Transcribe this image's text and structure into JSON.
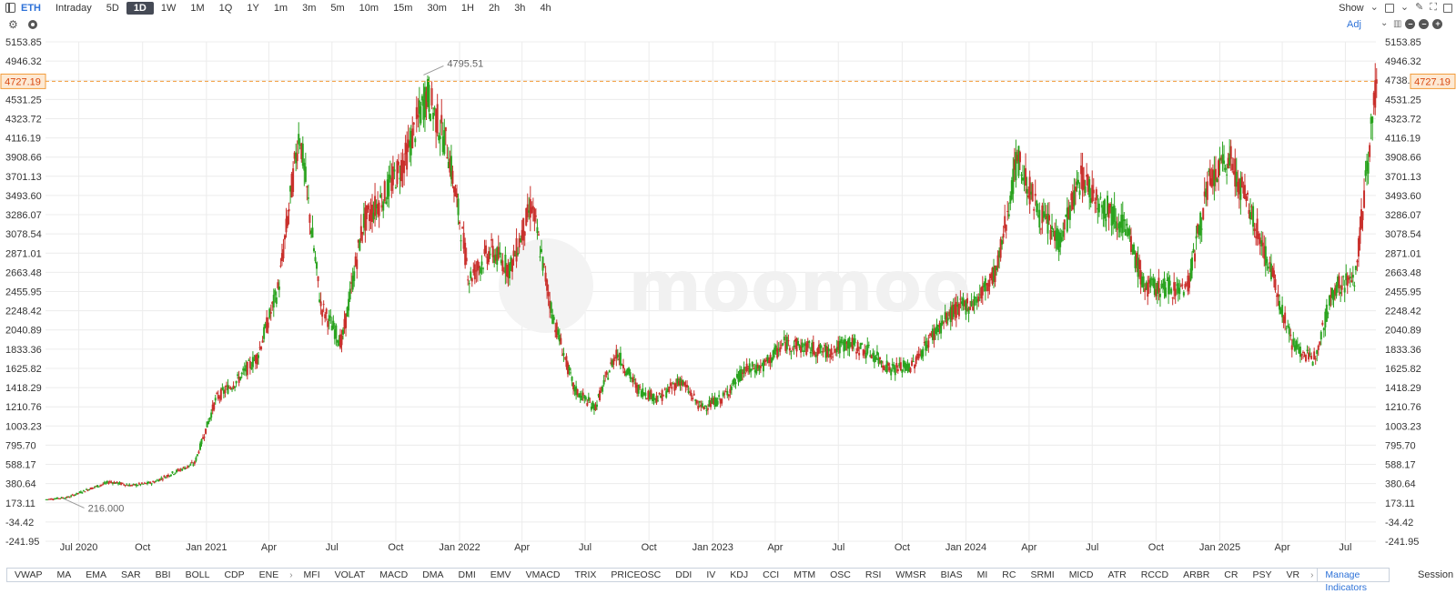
{
  "toolbar": {
    "ticker": "ETH",
    "periods": [
      "Intraday",
      "5D",
      "1D",
      "1W",
      "1M",
      "1Q",
      "1Y",
      "1m",
      "3m",
      "5m",
      "10m",
      "15m",
      "30m",
      "1H",
      "2h",
      "3h",
      "4h"
    ],
    "active_period": "1D",
    "show_label": "Show",
    "adj_label": "Adj"
  },
  "chart_data": {
    "type": "candlestick",
    "watermark": "moomoo",
    "y_ticks": [
      "5153.85",
      "4946.32",
      "4738.78",
      "4531.25",
      "4323.72",
      "4116.19",
      "3908.66",
      "3701.13",
      "3493.60",
      "3286.07",
      "3078.54",
      "2871.01",
      "2663.48",
      "2455.95",
      "2248.42",
      "2040.89",
      "1833.36",
      "1625.82",
      "1418.29",
      "1210.76",
      "1003.23",
      "795.70",
      "588.17",
      "380.64",
      "173.11",
      "-34.42",
      "-241.95"
    ],
    "x_ticks": [
      "Jul 2020",
      "Oct",
      "Jan 2021",
      "Apr",
      "Jul",
      "Oct",
      "Jan 2022",
      "Apr",
      "Jul",
      "Oct",
      "Jan 2023",
      "Apr",
      "Jul",
      "Oct",
      "Jan 2024",
      "Apr",
      "Jul",
      "Oct",
      "Jan 2025",
      "Apr",
      "Jul"
    ],
    "y_range": [
      -241.95,
      5153.85
    ],
    "current_price": "4727.19",
    "max_label": "4795.51",
    "min_label": "216.000",
    "up_color": "#2aa31f",
    "down_color": "#c9302c",
    "price_line_color": "#f29b38",
    "series": [
      {
        "date": "2020-05",
        "value": 210
      },
      {
        "date": "2020-06",
        "value": 232
      },
      {
        "date": "2020-07",
        "value": 320
      },
      {
        "date": "2020-08",
        "value": 400
      },
      {
        "date": "2020-09",
        "value": 360
      },
      {
        "date": "2020-10",
        "value": 390
      },
      {
        "date": "2020-11",
        "value": 500
      },
      {
        "date": "2020-12",
        "value": 600
      },
      {
        "date": "2021-01",
        "value": 1300
      },
      {
        "date": "2021-02",
        "value": 1500
      },
      {
        "date": "2021-03",
        "value": 1750
      },
      {
        "date": "2021-04",
        "value": 2500
      },
      {
        "date": "2021-05",
        "value": 4200
      },
      {
        "date": "2021-06",
        "value": 2300
      },
      {
        "date": "2021-07",
        "value": 1900
      },
      {
        "date": "2021-08",
        "value": 3200
      },
      {
        "date": "2021-09",
        "value": 3500
      },
      {
        "date": "2021-10",
        "value": 3900
      },
      {
        "date": "2021-11",
        "value": 4600
      },
      {
        "date": "2021-12",
        "value": 4000
      },
      {
        "date": "2022-01",
        "value": 2600
      },
      {
        "date": "2022-02",
        "value": 2900
      },
      {
        "date": "2022-03",
        "value": 2700
      },
      {
        "date": "2022-04",
        "value": 3400
      },
      {
        "date": "2022-05",
        "value": 2200
      },
      {
        "date": "2022-06",
        "value": 1400
      },
      {
        "date": "2022-07",
        "value": 1200
      },
      {
        "date": "2022-08",
        "value": 1800
      },
      {
        "date": "2022-09",
        "value": 1400
      },
      {
        "date": "2022-10",
        "value": 1300
      },
      {
        "date": "2022-11",
        "value": 1500
      },
      {
        "date": "2022-12",
        "value": 1200
      },
      {
        "date": "2023-01",
        "value": 1300
      },
      {
        "date": "2023-02",
        "value": 1600
      },
      {
        "date": "2023-03",
        "value": 1650
      },
      {
        "date": "2023-04",
        "value": 1900
      },
      {
        "date": "2023-05",
        "value": 1850
      },
      {
        "date": "2023-06",
        "value": 1800
      },
      {
        "date": "2023-07",
        "value": 1900
      },
      {
        "date": "2023-08",
        "value": 1800
      },
      {
        "date": "2023-09",
        "value": 1620
      },
      {
        "date": "2023-10",
        "value": 1650
      },
      {
        "date": "2023-11",
        "value": 2000
      },
      {
        "date": "2023-12",
        "value": 2250
      },
      {
        "date": "2024-01",
        "value": 2350
      },
      {
        "date": "2024-02",
        "value": 2700
      },
      {
        "date": "2024-03",
        "value": 3900
      },
      {
        "date": "2024-04",
        "value": 3300
      },
      {
        "date": "2024-05",
        "value": 3000
      },
      {
        "date": "2024-06",
        "value": 3700
      },
      {
        "date": "2024-07",
        "value": 3400
      },
      {
        "date": "2024-08",
        "value": 3200
      },
      {
        "date": "2024-09",
        "value": 2500
      },
      {
        "date": "2024-10",
        "value": 2500
      },
      {
        "date": "2024-11",
        "value": 2500
      },
      {
        "date": "2024-12",
        "value": 3600
      },
      {
        "date": "2025-01",
        "value": 3900
      },
      {
        "date": "2025-02",
        "value": 3300
      },
      {
        "date": "2025-03",
        "value": 2700
      },
      {
        "date": "2025-04",
        "value": 1900
      },
      {
        "date": "2025-05",
        "value": 1700
      },
      {
        "date": "2025-06",
        "value": 2500
      },
      {
        "date": "2025-07",
        "value": 2600
      },
      {
        "date": "2025-08",
        "value": 4727
      }
    ]
  },
  "indicators": [
    "VWAP",
    "MA",
    "EMA",
    "SAR",
    "BBI",
    "BOLL",
    "CDP",
    "ENE",
    "MFI",
    "VOLAT",
    "MACD",
    "DMA",
    "DMI",
    "EMV",
    "VMACD",
    "TRIX",
    "PRICEOSC",
    "DDI",
    "IV",
    "KDJ",
    "CCI",
    "MTM",
    "OSC",
    "RSI",
    "WMSR",
    "BIAS",
    "MI",
    "RC",
    "SRMI",
    "MICD",
    "ATR",
    "RCCD",
    "ARBR",
    "CR",
    "PSY",
    "VR"
  ],
  "manage_label": "Manage Indicators",
  "session_label": "Session"
}
